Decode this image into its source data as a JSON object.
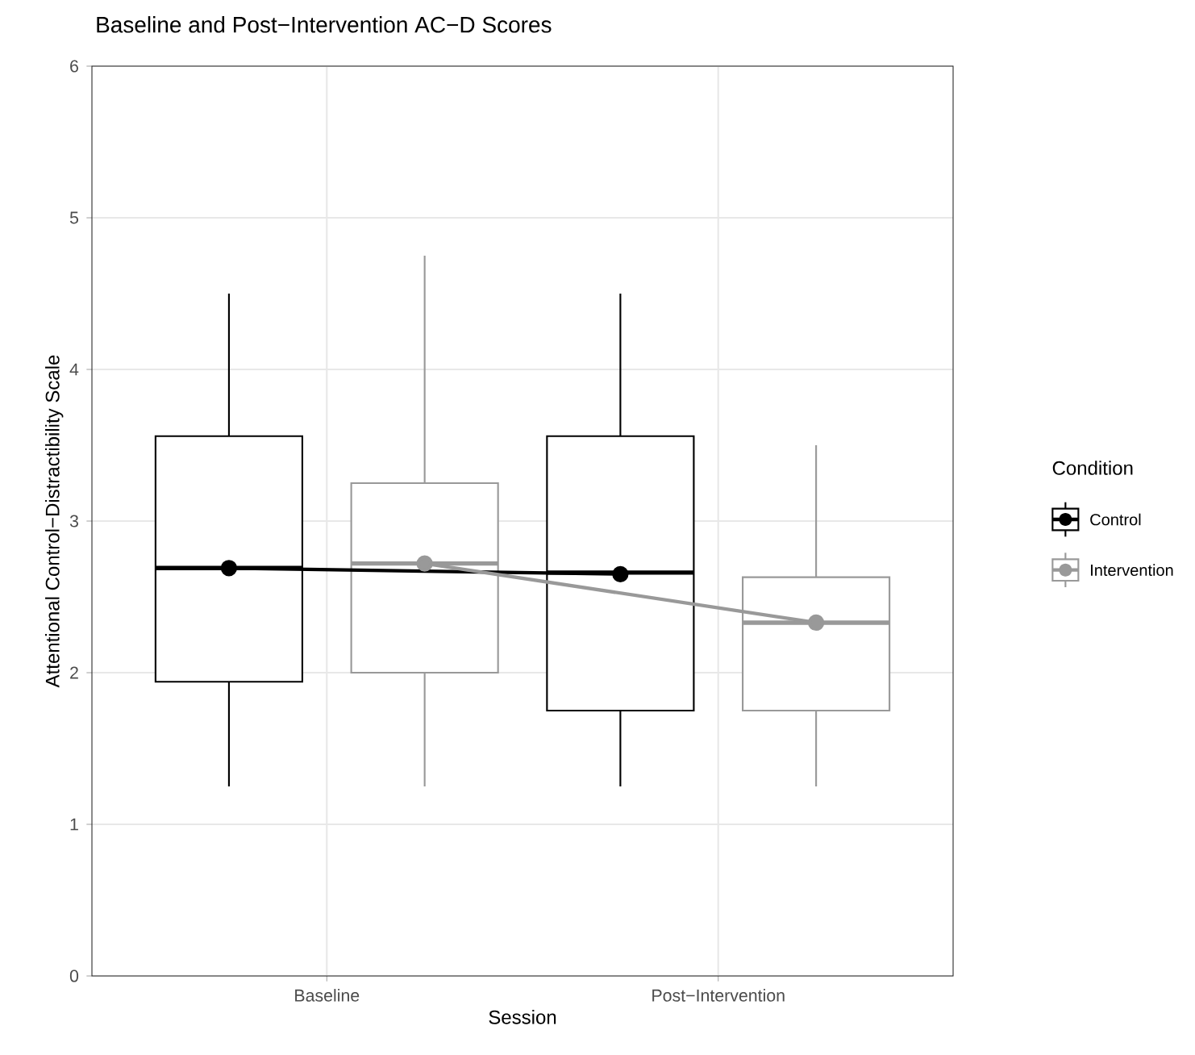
{
  "chart_data": {
    "type": "box",
    "title": "Baseline and Post−Intervention AC−D Scores",
    "xlabel": "Session",
    "ylabel": "Attentional Control−Distractibility Scale",
    "legend_title": "Condition",
    "categories": [
      "Baseline",
      "Post−Intervention"
    ],
    "series": [
      {
        "name": "Control",
        "color": "#000000",
        "boxes": [
          {
            "low": 1.25,
            "q1": 1.94,
            "median": 2.69,
            "q3": 3.56,
            "high": 4.5
          },
          {
            "low": 1.25,
            "q1": 1.75,
            "median": 2.66,
            "q3": 3.56,
            "high": 4.5
          }
        ]
      },
      {
        "name": "Intervention",
        "color": "#999999",
        "boxes": [
          {
            "low": 1.25,
            "q1": 2.0,
            "median": 2.72,
            "q3": 3.25,
            "high": 4.75
          },
          {
            "low": 1.25,
            "q1": 1.75,
            "median": 2.33,
            "q3": 2.63,
            "high": 3.5
          }
        ]
      },
      {
        "type": "line",
        "color": "#000000",
        "values": [
          2.69,
          2.65
        ],
        "marker": "circle",
        "line_style": "solid"
      },
      {
        "type": "line",
        "color": "#999999",
        "values": [
          2.72,
          2.33
        ],
        "marker": "circle",
        "line_style": "solid"
      }
    ],
    "ylim": [
      0,
      6
    ],
    "yticks": [
      0,
      1,
      2,
      3,
      4,
      5,
      6
    ],
    "grid": true,
    "legend": "right"
  }
}
